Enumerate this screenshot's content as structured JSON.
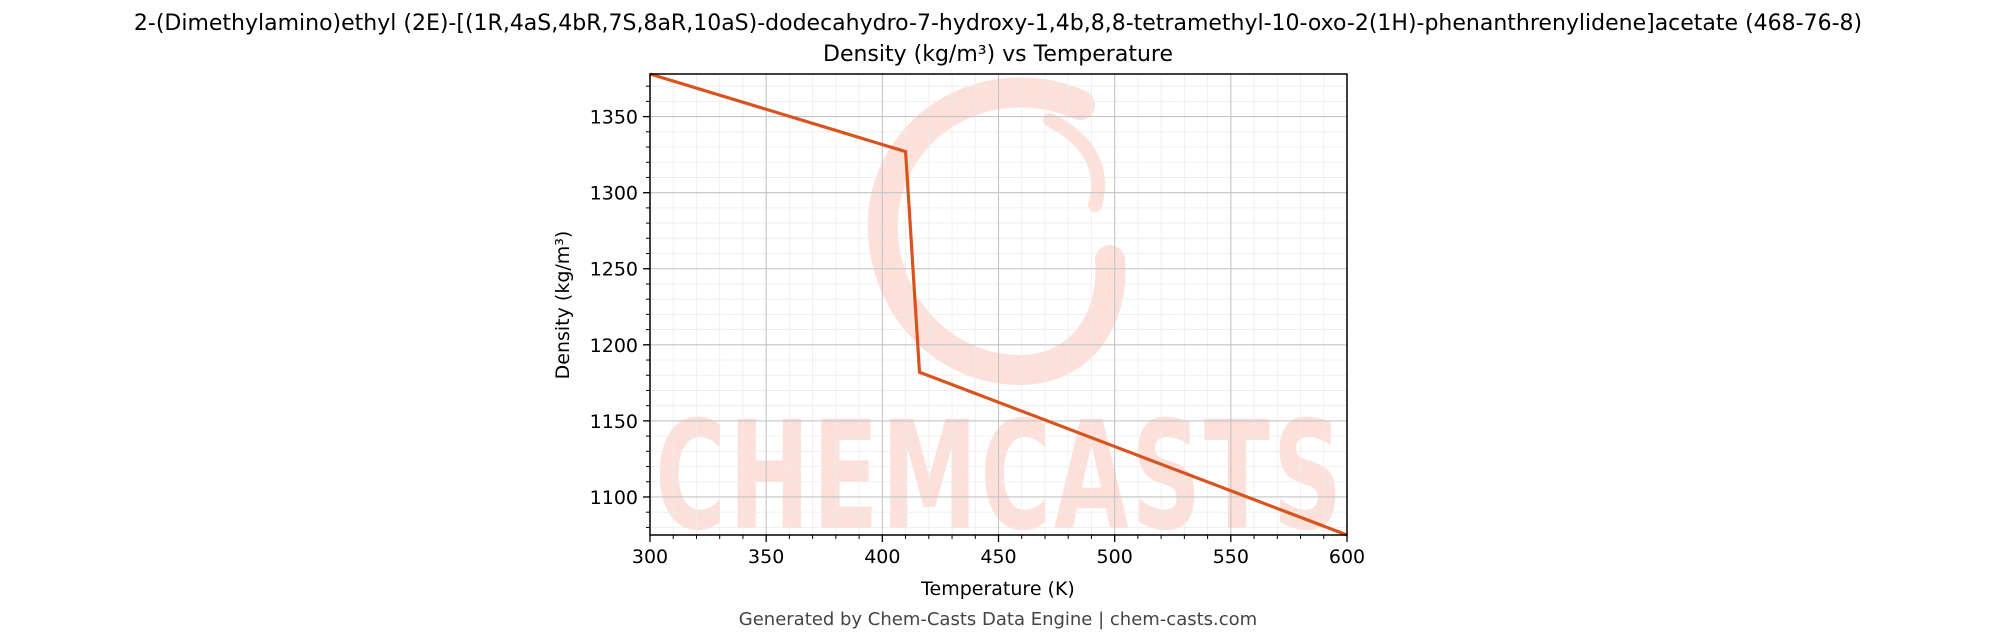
{
  "chart_data": {
    "type": "line",
    "title": "2-(Dimethylamino)ethyl (2E)-[(1R,4aS,4bR,7S,8aR,10aS)-dodecahydro-7-hydroxy-1,4b,8,8-tetramethyl-10-oxo-2(1H)-phenanthrenylidene]acetate (468-76-8)",
    "subtitle": "Density (kg/m³) vs Temperature",
    "xlabel": "Temperature (K)",
    "ylabel": "Density (kg/m³)",
    "xlim": [
      300,
      600
    ],
    "ylim": [
      1075,
      1378
    ],
    "xticks": [
      300,
      350,
      400,
      450,
      500,
      550,
      600
    ],
    "yticks": [
      1100,
      1150,
      1200,
      1250,
      1300,
      1350
    ],
    "grid": true,
    "series": [
      {
        "color": "#d9531e",
        "x": [
          300,
          410,
          416,
          600
        ],
        "y": [
          1378,
          1327,
          1182,
          1075
        ]
      }
    ]
  },
  "watermark": "CHEMCASTS",
  "footer": "Generated by Chem-Casts Data Engine | chem-casts.com"
}
